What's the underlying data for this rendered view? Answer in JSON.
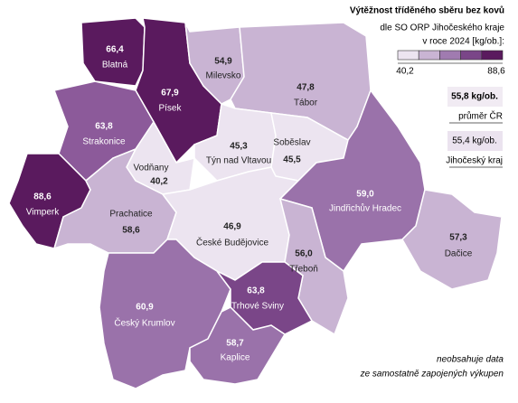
{
  "title": "Výtěžnost tříděného sběru bez kovů",
  "subtitle": [
    "dle SO ORP Jihočeského kraje",
    "v roce 2024 [kg/ob.]:"
  ],
  "legend": {
    "colors": [
      "#ece4f0",
      "#c9b4d3",
      "#a07bb0",
      "#7a4688",
      "#5a1a5e"
    ],
    "ticks": [
      {
        "value": 40.2,
        "label": "40,2"
      },
      {
        "value": 88.6,
        "label": "88,6"
      }
    ]
  },
  "regions": {
    "names": [
      "Blatná",
      "Písek",
      "Milevsko",
      "Tábor",
      "Strakonice",
      "Týn nad Vltavou",
      "Soběslav",
      "Vodňany",
      "Vimperk",
      "Prachatice",
      "České Budějovice",
      "Jindřichův Hradec",
      "Třeboň",
      "Dačice",
      "Český Krumlov",
      "Trhové Sviny",
      "Kaplice"
    ],
    "values": [
      66.4,
      67.9,
      54.9,
      47.8,
      63.8,
      45.3,
      45.5,
      40.2,
      88.6,
      58.6,
      46.9,
      59.0,
      56.0,
      57.3,
      60.9,
      63.8,
      58.7
    ],
    "value_labels": [
      "66,4",
      "67,9",
      "54,9",
      "47,8",
      "63,8",
      "45,3",
      "45,5",
      "40,2",
      "88,6",
      "58,6",
      "46,9",
      "59,0",
      "56,0",
      "57,3",
      "60,9",
      "63,8",
      "58,7"
    ],
    "colors": [
      "#5a1a5e",
      "#5a1a5e",
      "#c9b4d3",
      "#c9b4d3",
      "#8c5a9a",
      "#ece4f0",
      "#ece4f0",
      "#ece4f0",
      "#5a1a5e",
      "#c9b4d3",
      "#ece4f0",
      "#9a72aa",
      "#c9b4d3",
      "#c9b4d3",
      "#9a72aa",
      "#7a4688",
      "#9a72aa"
    ]
  },
  "reference": [
    {
      "value": 55.8,
      "value_label": "55,8 kg/ob.",
      "label": "průměr ČR"
    },
    {
      "value": 55.4,
      "value_label": "55,4 kg/ob.",
      "label": "Jihočeský kraj"
    }
  ],
  "footnote": [
    "neobsahuje data",
    "ze samostatně zapojených výkupen"
  ]
}
